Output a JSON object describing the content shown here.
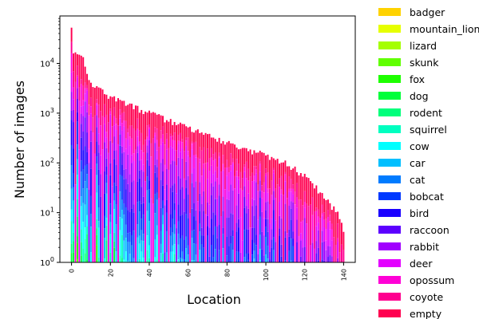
{
  "chart_data": {
    "type": "bar",
    "stacked": true,
    "title": "",
    "xlabel": "Location",
    "ylabel": "Number of images",
    "xlim": [
      -6,
      146
    ],
    "ylim": [
      1,
      90000
    ],
    "yscale": "log",
    "xticks": [
      "0",
      "20",
      "40",
      "60",
      "80",
      "100",
      "120",
      "140"
    ],
    "yticks": [
      "10^0",
      "10^1",
      "10^2",
      "10^3",
      "10^4"
    ],
    "n_locations": 141,
    "legend": {
      "placement": "outside-right",
      "entries": [
        {
          "name": "badger",
          "color": "#ffd200"
        },
        {
          "name": "mountain_lion",
          "color": "#e6ff00"
        },
        {
          "name": "lizard",
          "color": "#a5ff00"
        },
        {
          "name": "skunk",
          "color": "#60ff00"
        },
        {
          "name": "fox",
          "color": "#1eff00"
        },
        {
          "name": "dog",
          "color": "#00ff3a"
        },
        {
          "name": "rodent",
          "color": "#00ff7b"
        },
        {
          "name": "squirrel",
          "color": "#00ffc0"
        },
        {
          "name": "cow",
          "color": "#00ffff"
        },
        {
          "name": "car",
          "color": "#00bfff"
        },
        {
          "name": "cat",
          "color": "#007bff"
        },
        {
          "name": "bobcat",
          "color": "#0039ff"
        },
        {
          "name": "bird",
          "color": "#1a00ff"
        },
        {
          "name": "raccoon",
          "color": "#5c00ff"
        },
        {
          "name": "rabbit",
          "color": "#a100ff"
        },
        {
          "name": "deer",
          "color": "#e300ff"
        },
        {
          "name": "opossum",
          "color": "#ff00d6"
        },
        {
          "name": "coyote",
          "color": "#ff008f"
        },
        {
          "name": "empty",
          "color": "#ff0050"
        }
      ]
    },
    "location_totals_approx": {
      "x": [
        0,
        1,
        2,
        3,
        4,
        5,
        6,
        7,
        8,
        9,
        10,
        15,
        20,
        25,
        30,
        35,
        40,
        50,
        60,
        70,
        80,
        90,
        100,
        110,
        120,
        125,
        130,
        135,
        138,
        140
      ],
      "y": [
        50000,
        18000,
        17000,
        16500,
        15000,
        14000,
        13000,
        9000,
        7000,
        5000,
        4000,
        2800,
        2000,
        1800,
        1400,
        1200,
        1000,
        700,
        500,
        350,
        250,
        190,
        140,
        100,
        55,
        35,
        20,
        12,
        8,
        4
      ]
    }
  }
}
